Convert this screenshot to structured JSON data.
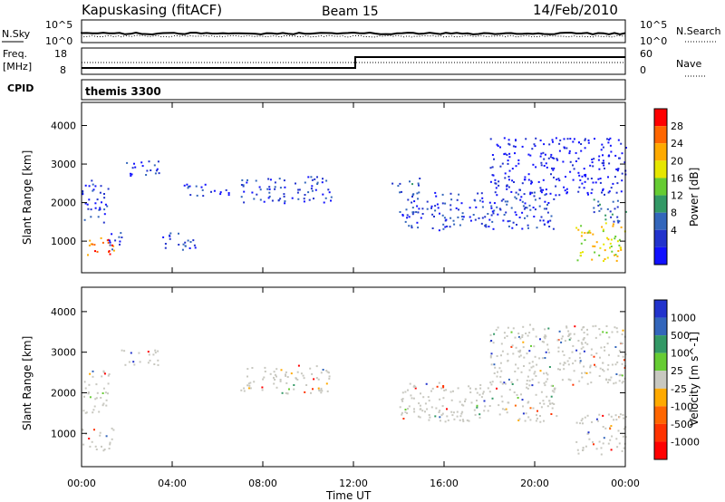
{
  "header": {
    "station": "Kapuskasing (fitACF)",
    "beam": "Beam 15",
    "date": "14/Feb/2010"
  },
  "noise_panel": {
    "left_label": "N.Sky",
    "left_ticks": [
      "10^5",
      "10^0"
    ],
    "right_ticks": [
      "10^5",
      "10^0"
    ],
    "right_label": "N.Search"
  },
  "freq_panel": {
    "left_label_1": "Freq.",
    "left_label_2": "[MHz]",
    "left_ticks": [
      "18",
      "8"
    ],
    "right_ticks": [
      "60",
      "0"
    ],
    "right_label": "Nave"
  },
  "cpid_panel": {
    "label": "CPID",
    "program": "themis 3300"
  },
  "chart_data": [
    {
      "type": "heatmap",
      "name": "power",
      "ylabel": "Slant Range [km]",
      "xlabel": "Time UT",
      "x_ticks": [
        "00:00",
        "04:00",
        "08:00",
        "12:00",
        "16:00",
        "20:00",
        "00:00"
      ],
      "y_ticks": [
        "1000",
        "2000",
        "3000",
        "4000"
      ],
      "xlim_hours": [
        0,
        24
      ],
      "ylim_km": [
        180,
        4600
      ],
      "colorbar": {
        "label": "Power [dB]",
        "ticks": [
          "28",
          "24",
          "20",
          "16",
          "12",
          "8",
          "4"
        ],
        "colors": [
          "#ff0000",
          "#ff6600",
          "#ffaa00",
          "#e6e600",
          "#66cc33",
          "#339966",
          "#3366bb",
          "#2233cc",
          "#1111ff"
        ]
      },
      "regions": [
        {
          "t": [
            0.0,
            1.4
          ],
          "r": [
            600,
            1150
          ],
          "level": 26
        },
        {
          "t": [
            0.0,
            1.2
          ],
          "r": [
            1500,
            2600
          ],
          "level": 6
        },
        {
          "t": [
            1.0,
            1.9
          ],
          "r": [
            800,
            1250
          ],
          "level": 7
        },
        {
          "t": [
            1.6,
            3.4
          ],
          "r": [
            2700,
            3100
          ],
          "level": 6
        },
        {
          "t": [
            3.5,
            5.0
          ],
          "r": [
            750,
            1250
          ],
          "level": 6
        },
        {
          "t": [
            4.5,
            6.5
          ],
          "r": [
            2150,
            2500
          ],
          "level": 6
        },
        {
          "t": [
            7.0,
            11.0
          ],
          "r": [
            2000,
            2700
          ],
          "level": 8
        },
        {
          "t": [
            13.5,
            15.0
          ],
          "r": [
            2450,
            2650
          ],
          "level": 11
        },
        {
          "t": [
            14.0,
            21.0
          ],
          "r": [
            1300,
            2300
          ],
          "level": 6
        },
        {
          "t": [
            18.0,
            24.0
          ],
          "r": [
            2200,
            3700
          ],
          "level": 5
        },
        {
          "t": [
            21.8,
            24.0
          ],
          "r": [
            500,
            1500
          ],
          "level": 20
        },
        {
          "t": [
            22.5,
            24.0
          ],
          "r": [
            1500,
            2100
          ],
          "level": 10
        }
      ]
    },
    {
      "type": "heatmap",
      "name": "velocity",
      "ylabel": "Slant Range [km]",
      "xlabel": "Time UT",
      "x_ticks": [
        "00:00",
        "04:00",
        "08:00",
        "12:00",
        "16:00",
        "20:00",
        "00:00"
      ],
      "y_ticks": [
        "1000",
        "2000",
        "3000",
        "4000"
      ],
      "xlim_hours": [
        0,
        24
      ],
      "ylim_km": [
        180,
        4600
      ],
      "colorbar": {
        "label": "Velocity [m s^-1]",
        "ticks": [
          "1000",
          "500",
          "100",
          "25",
          "-25",
          "-100",
          "-500",
          "-1000"
        ],
        "colors": [
          "#2233cc",
          "#3366bb",
          "#339966",
          "#66cc33",
          "#c8c8c0",
          "#ffaa00",
          "#ff6600",
          "#ff3300",
          "#ff0000"
        ]
      },
      "regions": [
        {
          "t": [
            0.0,
            1.4
          ],
          "r": [
            600,
            1150
          ],
          "level": 0
        },
        {
          "t": [
            0.0,
            1.2
          ],
          "r": [
            1500,
            2600
          ],
          "level": 0
        },
        {
          "t": [
            1.6,
            3.4
          ],
          "r": [
            2700,
            3100
          ],
          "level": 0
        },
        {
          "t": [
            7.0,
            11.0
          ],
          "r": [
            2000,
            2700
          ],
          "level": 40
        },
        {
          "t": [
            14.0,
            21.0
          ],
          "r": [
            1300,
            2300
          ],
          "level": 0
        },
        {
          "t": [
            18.0,
            24.0
          ],
          "r": [
            2200,
            3700
          ],
          "level": 0
        },
        {
          "t": [
            21.8,
            24.0
          ],
          "r": [
            500,
            1500
          ],
          "level": 0
        }
      ]
    }
  ],
  "x_axis_title": "Time UT"
}
